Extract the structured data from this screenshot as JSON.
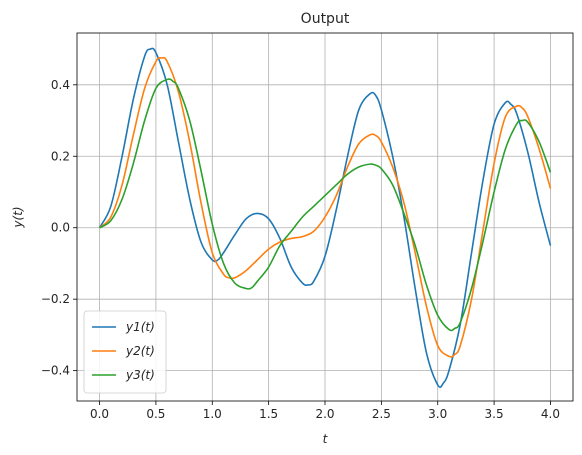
{
  "chart_data": {
    "type": "line",
    "title": "Output",
    "xlabel": "t",
    "ylabel": "y(t)",
    "xlim": [
      -0.2,
      4.2
    ],
    "ylim": [
      -0.485,
      0.545
    ],
    "xticks": [
      0.0,
      0.5,
      1.0,
      1.5,
      2.0,
      2.5,
      3.0,
      3.5,
      4.0
    ],
    "xtick_labels": [
      "0.0",
      "0.5",
      "1.0",
      "1.5",
      "2.0",
      "2.5",
      "3.0",
      "3.5",
      "4.0"
    ],
    "yticks": [
      -0.4,
      -0.2,
      0.0,
      0.2,
      0.4
    ],
    "ytick_labels": [
      "−0.4",
      "−0.2",
      "0.0",
      "0.2",
      "0.4"
    ],
    "grid": true,
    "legend_position": "lower-left",
    "series": [
      {
        "name": "y1(t)",
        "color": "#1f77b4",
        "points": [
          [
            0.0,
            0.0
          ],
          [
            0.1,
            0.06
          ],
          [
            0.2,
            0.2
          ],
          [
            0.3,
            0.36
          ],
          [
            0.4,
            0.48
          ],
          [
            0.45,
            0.5
          ],
          [
            0.5,
            0.49
          ],
          [
            0.6,
            0.4
          ],
          [
            0.7,
            0.24
          ],
          [
            0.8,
            0.08
          ],
          [
            0.9,
            -0.04
          ],
          [
            1.0,
            -0.09
          ],
          [
            1.05,
            -0.09
          ],
          [
            1.1,
            -0.07
          ],
          [
            1.2,
            -0.02
          ],
          [
            1.3,
            0.025
          ],
          [
            1.4,
            0.04
          ],
          [
            1.5,
            0.025
          ],
          [
            1.6,
            -0.03
          ],
          [
            1.7,
            -0.11
          ],
          [
            1.8,
            -0.155
          ],
          [
            1.85,
            -0.16
          ],
          [
            1.9,
            -0.15
          ],
          [
            2.0,
            -0.08
          ],
          [
            2.1,
            0.05
          ],
          [
            2.2,
            0.2
          ],
          [
            2.3,
            0.33
          ],
          [
            2.4,
            0.375
          ],
          [
            2.45,
            0.37
          ],
          [
            2.5,
            0.33
          ],
          [
            2.6,
            0.2
          ],
          [
            2.7,
            0.03
          ],
          [
            2.8,
            -0.17
          ],
          [
            2.9,
            -0.35
          ],
          [
            3.0,
            -0.44
          ],
          [
            3.05,
            -0.435
          ],
          [
            3.1,
            -0.4
          ],
          [
            3.2,
            -0.27
          ],
          [
            3.3,
            -0.07
          ],
          [
            3.4,
            0.13
          ],
          [
            3.5,
            0.29
          ],
          [
            3.6,
            0.35
          ],
          [
            3.65,
            0.345
          ],
          [
            3.7,
            0.32
          ],
          [
            3.8,
            0.21
          ],
          [
            3.9,
            0.07
          ],
          [
            4.0,
            -0.05
          ]
        ]
      },
      {
        "name": "y2(t)",
        "color": "#ff7f0e",
        "points": [
          [
            0.0,
            0.0
          ],
          [
            0.1,
            0.03
          ],
          [
            0.2,
            0.12
          ],
          [
            0.3,
            0.26
          ],
          [
            0.4,
            0.39
          ],
          [
            0.5,
            0.465
          ],
          [
            0.55,
            0.475
          ],
          [
            0.6,
            0.465
          ],
          [
            0.7,
            0.38
          ],
          [
            0.8,
            0.24
          ],
          [
            0.9,
            0.07
          ],
          [
            1.0,
            -0.07
          ],
          [
            1.1,
            -0.13
          ],
          [
            1.15,
            -0.14
          ],
          [
            1.2,
            -0.14
          ],
          [
            1.3,
            -0.12
          ],
          [
            1.4,
            -0.09
          ],
          [
            1.5,
            -0.06
          ],
          [
            1.6,
            -0.04
          ],
          [
            1.7,
            -0.03
          ],
          [
            1.8,
            -0.025
          ],
          [
            1.9,
            -0.01
          ],
          [
            2.0,
            0.03
          ],
          [
            2.1,
            0.09
          ],
          [
            2.2,
            0.17
          ],
          [
            2.3,
            0.235
          ],
          [
            2.4,
            0.26
          ],
          [
            2.45,
            0.258
          ],
          [
            2.5,
            0.24
          ],
          [
            2.6,
            0.17
          ],
          [
            2.7,
            0.07
          ],
          [
            2.8,
            -0.07
          ],
          [
            2.9,
            -0.22
          ],
          [
            3.0,
            -0.33
          ],
          [
            3.1,
            -0.36
          ],
          [
            3.15,
            -0.355
          ],
          [
            3.2,
            -0.33
          ],
          [
            3.3,
            -0.2
          ],
          [
            3.4,
            -0.01
          ],
          [
            3.5,
            0.18
          ],
          [
            3.6,
            0.31
          ],
          [
            3.7,
            0.34
          ],
          [
            3.75,
            0.335
          ],
          [
            3.8,
            0.31
          ],
          [
            3.9,
            0.22
          ],
          [
            4.0,
            0.11
          ]
        ]
      },
      {
        "name": "y3(t)",
        "color": "#2ca02c",
        "points": [
          [
            0.0,
            0.0
          ],
          [
            0.1,
            0.02
          ],
          [
            0.2,
            0.08
          ],
          [
            0.3,
            0.18
          ],
          [
            0.4,
            0.3
          ],
          [
            0.5,
            0.39
          ],
          [
            0.6,
            0.415
          ],
          [
            0.65,
            0.41
          ],
          [
            0.7,
            0.39
          ],
          [
            0.8,
            0.3
          ],
          [
            0.9,
            0.16
          ],
          [
            1.0,
            0.01
          ],
          [
            1.1,
            -0.1
          ],
          [
            1.2,
            -0.155
          ],
          [
            1.3,
            -0.17
          ],
          [
            1.35,
            -0.168
          ],
          [
            1.4,
            -0.15
          ],
          [
            1.5,
            -0.11
          ],
          [
            1.6,
            -0.05
          ],
          [
            1.7,
            -0.01
          ],
          [
            1.8,
            0.03
          ],
          [
            1.9,
            0.06
          ],
          [
            2.0,
            0.09
          ],
          [
            2.1,
            0.12
          ],
          [
            2.2,
            0.15
          ],
          [
            2.3,
            0.17
          ],
          [
            2.4,
            0.178
          ],
          [
            2.45,
            0.175
          ],
          [
            2.5,
            0.165
          ],
          [
            2.6,
            0.12
          ],
          [
            2.7,
            0.04
          ],
          [
            2.8,
            -0.05
          ],
          [
            2.9,
            -0.16
          ],
          [
            3.0,
            -0.245
          ],
          [
            3.1,
            -0.285
          ],
          [
            3.15,
            -0.282
          ],
          [
            3.2,
            -0.265
          ],
          [
            3.3,
            -0.17
          ],
          [
            3.4,
            -0.04
          ],
          [
            3.5,
            0.1
          ],
          [
            3.6,
            0.22
          ],
          [
            3.7,
            0.29
          ],
          [
            3.75,
            0.3
          ],
          [
            3.8,
            0.295
          ],
          [
            3.9,
            0.24
          ],
          [
            4.0,
            0.155
          ]
        ]
      }
    ]
  }
}
